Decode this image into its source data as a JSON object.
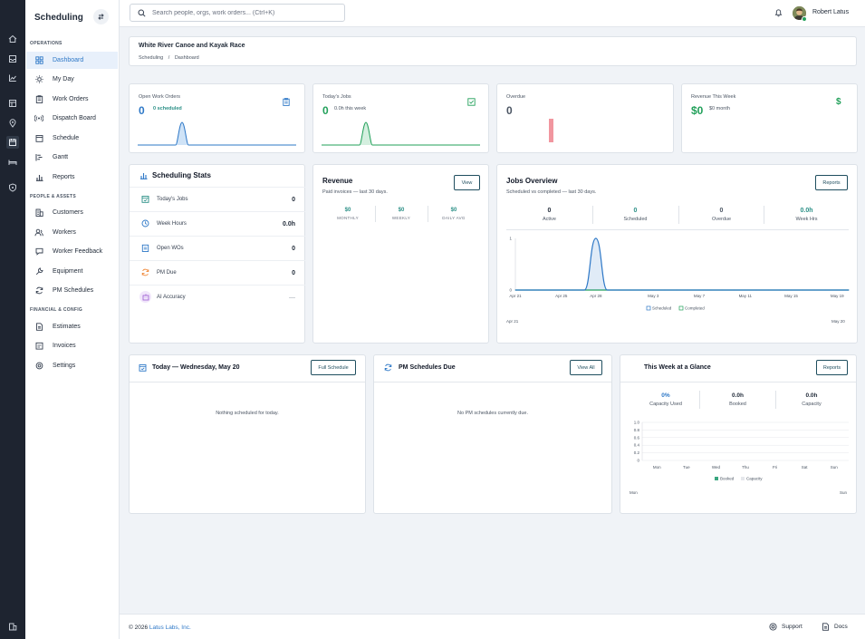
{
  "app": {
    "title": "Scheduling"
  },
  "sidebar": {
    "sections": [
      {
        "title": "OPERATIONS",
        "items": [
          {
            "label": "Dashboard",
            "icon": "grid-icon",
            "active": true
          },
          {
            "label": "My Day",
            "icon": "sun-icon"
          },
          {
            "label": "Work Orders",
            "icon": "clipboard-icon"
          },
          {
            "label": "Dispatch Board",
            "icon": "broadcast-icon"
          },
          {
            "label": "Schedule",
            "icon": "calendar-icon"
          },
          {
            "label": "Gantt",
            "icon": "gantt-icon"
          },
          {
            "label": "Reports",
            "icon": "bar-chart-icon"
          }
        ]
      },
      {
        "title": "PEOPLE & ASSETS",
        "items": [
          {
            "label": "Customers",
            "icon": "building-icon"
          },
          {
            "label": "Workers",
            "icon": "users-icon"
          },
          {
            "label": "Worker Feedback",
            "icon": "message-icon"
          },
          {
            "label": "Equipment",
            "icon": "wrench-icon"
          },
          {
            "label": "PM Schedules",
            "icon": "refresh-icon"
          }
        ]
      },
      {
        "title": "FINANCIAL & CONFIG",
        "items": [
          {
            "label": "Estimates",
            "icon": "file-text-icon"
          },
          {
            "label": "Invoices",
            "icon": "invoice-icon"
          },
          {
            "label": "Settings",
            "icon": "gear-icon"
          }
        ]
      }
    ]
  },
  "topbar": {
    "search_placeholder": "Search people, orgs, work orders... (Ctrl+K)",
    "user_name": "Robert Latus"
  },
  "header": {
    "project": "White River Canoe and Kayak Race",
    "breadcrumb": [
      "Scheduling",
      "Dashboard"
    ],
    "breadcrumb_sep": "/"
  },
  "kpis": [
    {
      "label": "Open Work Orders",
      "value": "0",
      "sub": "0 scheduled",
      "icon": "clipboard-icon",
      "color": "#2e78c7"
    },
    {
      "label": "Today's Jobs",
      "value": "0",
      "sub": "0.0h this week",
      "icon": "check-square-icon",
      "color": "#22a05a"
    },
    {
      "label": "Overdue",
      "value": "0",
      "sub": "",
      "icon": "",
      "color": "#e45b6a"
    },
    {
      "label": "Revenue This Week",
      "value": "$0",
      "sub": "$0 month",
      "icon": "dollar-icon",
      "color": "#22a05a"
    }
  ],
  "scheduling_stats": {
    "title": "Scheduling Stats",
    "rows": [
      {
        "label": "Today's Jobs",
        "value": "0",
        "icon": "calendar-check-icon"
      },
      {
        "label": "Week Hours",
        "value": "0.0h",
        "icon": "clock-icon"
      },
      {
        "label": "Open WOs",
        "value": "0",
        "icon": "clipboard-icon"
      },
      {
        "label": "PM Due",
        "value": "0",
        "icon": "refresh-icon"
      },
      {
        "label": "AI Accuracy",
        "value": "—",
        "icon": "robot-icon"
      }
    ]
  },
  "revenue": {
    "title": "Revenue",
    "subtitle": "Paid invoices — last 30 days.",
    "button": "View",
    "stats": [
      {
        "value": "$0",
        "label": "MONTHLY"
      },
      {
        "value": "$0",
        "label": "WEEKLY"
      },
      {
        "value": "$0",
        "label": "DAILY AVG"
      }
    ]
  },
  "jobs_overview": {
    "title": "Jobs Overview",
    "subtitle": "Scheduled vs completed — last 30 days.",
    "button": "Reports",
    "stats": [
      {
        "value": "0",
        "label": "Active"
      },
      {
        "value": "0",
        "label": "Scheduled"
      },
      {
        "value": "0",
        "label": "Overdue"
      },
      {
        "value": "0.0h",
        "label": "Week Hrs"
      }
    ],
    "range_start": "Apr 21",
    "range_end": "May 20"
  },
  "today": {
    "title": "Today — Wednesday, May 20",
    "button": "Full Schedule",
    "empty": "Nothing scheduled for today."
  },
  "pm": {
    "title": "PM Schedules Due",
    "button": "View All",
    "empty": "No PM schedules currently due."
  },
  "week": {
    "title": "This Week at a Glance",
    "button": "Reports",
    "stats": [
      {
        "value": "0%",
        "label": "Capacity Used"
      },
      {
        "value": "0.0h",
        "label": "Booked"
      },
      {
        "value": "0.0h",
        "label": "Capacity"
      }
    ],
    "range_start": "Mon",
    "range_end": "Sun"
  },
  "footer": {
    "copyright": "© 2026 ",
    "company": "Latus Labs, Inc.",
    "support": "Support",
    "docs": "Docs"
  },
  "chart_data": [
    {
      "type": "line",
      "id": "jobs-overview",
      "x": [
        "Apr 21",
        "Apr 22",
        "Apr 23",
        "Apr 24",
        "Apr 25",
        "Apr 26",
        "Apr 27",
        "Apr 28",
        "Apr 29",
        "Apr 30",
        "May 1",
        "May 2",
        "May 3",
        "May 4",
        "May 5",
        "May 6",
        "May 7",
        "May 8",
        "May 9",
        "May 10",
        "May 11",
        "May 12",
        "May 13",
        "May 14",
        "May 15",
        "May 16",
        "May 17",
        "May 18",
        "May 19",
        "May 20"
      ],
      "x_ticks": [
        "Apr 21",
        "Apr 25",
        "Apr 28",
        "May 3",
        "May 7",
        "May 11",
        "May 15",
        "May 19"
      ],
      "series": [
        {
          "name": "Scheduled",
          "color": "#2e78c7",
          "values": [
            0,
            0,
            0,
            0,
            0,
            0,
            0,
            1,
            0,
            0,
            0,
            0,
            0,
            0,
            0,
            0,
            0,
            0,
            0,
            0,
            0,
            0,
            0,
            0,
            0,
            0,
            0,
            0,
            0,
            0
          ]
        },
        {
          "name": "Completed",
          "color": "#22a05a",
          "values": [
            0,
            0,
            0,
            0,
            0,
            0,
            0,
            0,
            0,
            0,
            0,
            0,
            0,
            0,
            0,
            0,
            0,
            0,
            0,
            0,
            0,
            0,
            0,
            0,
            0,
            0,
            0,
            0,
            0,
            0
          ]
        }
      ],
      "ylim": [
        0,
        1
      ],
      "y_ticks": [
        "0",
        "1"
      ],
      "grid": false,
      "legend": "bottom"
    },
    {
      "type": "bar",
      "id": "week-glance",
      "categories": [
        "Mon",
        "Tue",
        "Wed",
        "Thu",
        "Fri",
        "Sat",
        "Sun"
      ],
      "series": [
        {
          "name": "Booked",
          "color": "#3aa680",
          "values": [
            0,
            0,
            0,
            0,
            0,
            0,
            0
          ]
        },
        {
          "name": "Capacity",
          "color": "#e5e7eb",
          "values": [
            0,
            0,
            0,
            0,
            0,
            0,
            0
          ]
        }
      ],
      "ylim": [
        0,
        1
      ],
      "y_ticks": [
        "1.0",
        "0.8",
        "0.6",
        "0.4",
        "0.2",
        "0"
      ],
      "grid": true,
      "legend": "bottom"
    }
  ]
}
